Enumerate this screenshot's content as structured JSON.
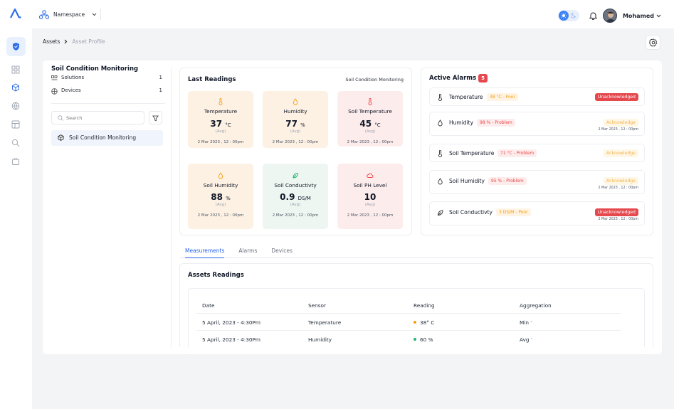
{
  "topbar": {
    "namespace": "Namespace",
    "user": "Mohamed"
  },
  "breadcrumb": {
    "root": "Assets",
    "current": "Asset Profile"
  },
  "asset": {
    "title": "Soil Condition Monitoring",
    "solutions_label": "Solutions",
    "solutions_count": "1",
    "devices_label": "Devices",
    "devices_count": "1",
    "search_placeholder": "Search",
    "tree_item": "Soil Condition Monitoring"
  },
  "readings": {
    "title": "Last Readings",
    "filter": "Soil Condition Monitoring",
    "tiles": [
      {
        "label": "Temperature",
        "value": "37",
        "unit": "°C",
        "agg": "(Avg)",
        "time": "2 Mar 2023 , 12 : 00pm",
        "color": "#fdf1e4"
      },
      {
        "label": "Humidity",
        "value": "77",
        "unit": "%",
        "agg": "(Avg)",
        "time": "2 Mar 2023 , 12 : 00pm",
        "color": "#fdf1e4"
      },
      {
        "label": "Soil Temperature",
        "value": "45",
        "unit": "°C",
        "agg": "(Avg)",
        "time": "2 Mar 2023 , 12 : 00pm",
        "color": "#fdecec"
      },
      {
        "label": "Soil Humidity",
        "value": "88",
        "unit": "%",
        "agg": "(Avg)",
        "time": "2 Mar 2023 , 12 : 00pm",
        "color": "#fdf1e4"
      },
      {
        "label": "Soil Conductivty",
        "value": "0.9",
        "unit": "DS/M",
        "agg": "(Avg)",
        "time": "2 Mar 2023 , 12 : 00pm",
        "color": "#edf6f0"
      },
      {
        "label": "Soil PH Level",
        "value": "10",
        "unit": "",
        "agg": "(Avg)",
        "time": "2 Mar 2023 , 12 : 00pm",
        "color": "#fdecec"
      }
    ]
  },
  "alarms": {
    "title": "Active Alarms",
    "count": "5",
    "items": [
      {
        "name": "Temperature",
        "chip": "38 °C - Poor",
        "status": "Unacknowledged",
        "time": ""
      },
      {
        "name": "Humidity",
        "chip": "98 % - Problem",
        "status": "Acknowledge",
        "time": "2 Mar 2023 , 12 : 00pm"
      },
      {
        "name": "Soil Temperature",
        "chip": "71 °C - Problem",
        "status": "Acknowledge",
        "time": ""
      },
      {
        "name": "Soil Humidity",
        "chip": "95 % - Problem",
        "status": "Acknowledge",
        "time": "2 Mar 2023 , 12 : 00pm"
      },
      {
        "name": "Soil Conductivty",
        "chip": "3 DS/M - Poor",
        "status": "Unacknowledged",
        "time": "2 Mar 2023 , 12 : 00pm"
      }
    ]
  },
  "tabs": [
    "Measurements",
    "Alarms",
    "Devices"
  ],
  "table": {
    "title": "Assets Readings",
    "headers": [
      "Date",
      "Sensor",
      "Reading",
      "Aggregation"
    ],
    "rows": [
      {
        "date": "5 April, 2023 - 4:30Pm",
        "sensor": "Temperature",
        "reading": "38° C",
        "agg": "Min",
        "dot": "#f59e0b"
      },
      {
        "date": "5 April, 2023 - 4:30Pm",
        "sensor": "Humidity",
        "reading": "60 %",
        "agg": "Avg",
        "dot": "#22b573"
      }
    ]
  },
  "colors": {
    "accent": "#2563eb",
    "alarm_badge": "#e5484d"
  }
}
